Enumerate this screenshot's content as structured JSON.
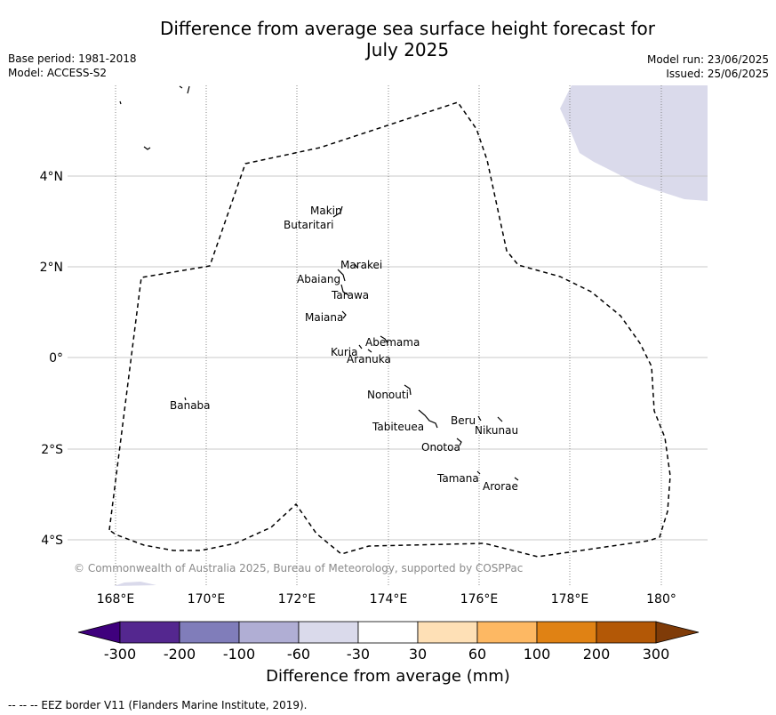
{
  "title_line1": "Difference from average sea surface height forecast for",
  "title_line2": "July 2025",
  "meta_left": [
    "Base period: 1981-2018",
    "Model: ACCESS-S2"
  ],
  "meta_right": [
    "Model run: 23/06/2025",
    "Issued: 25/06/2025"
  ],
  "lat_labels": [
    "4°N",
    "2°N",
    "0°",
    "2°S",
    "4°S"
  ],
  "lon_labels": [
    "168°E",
    "170°E",
    "172°E",
    "174°E",
    "176°E",
    "178°E",
    "180°"
  ],
  "places": [
    "Makin",
    "Butaritari",
    "Marakei",
    "Abaiang",
    "Tarawa",
    "Maiana",
    "Abemama",
    "Kuria",
    "Aranuka",
    "Nonouti",
    "Banaba",
    "Tabiteuea",
    "Beru",
    "Nikunau",
    "Onotoa",
    "Tamana",
    "Arorae"
  ],
  "copyright": "© Commonwealth of Australia 2025, Bureau of Meteorology, supported by COSPPac",
  "colorbar": {
    "title": "Difference from average (mm)",
    "tick_labels": [
      "-300",
      "-200",
      "-100",
      "-60",
      "-30",
      "30",
      "60",
      "100",
      "200",
      "300"
    ],
    "colors": [
      "#3f007d",
      "#54278f",
      "#807dba",
      "#b0aed4",
      "#dadaeb",
      "#ffffff",
      "#fee0b6",
      "#fdb863",
      "#e08214",
      "#b35806",
      "#7f3b08"
    ]
  },
  "anomaly_color": "#dadaeb",
  "footer": "-- -- -- EEZ border V11 (Flanders Marine Institute, 2019)."
}
